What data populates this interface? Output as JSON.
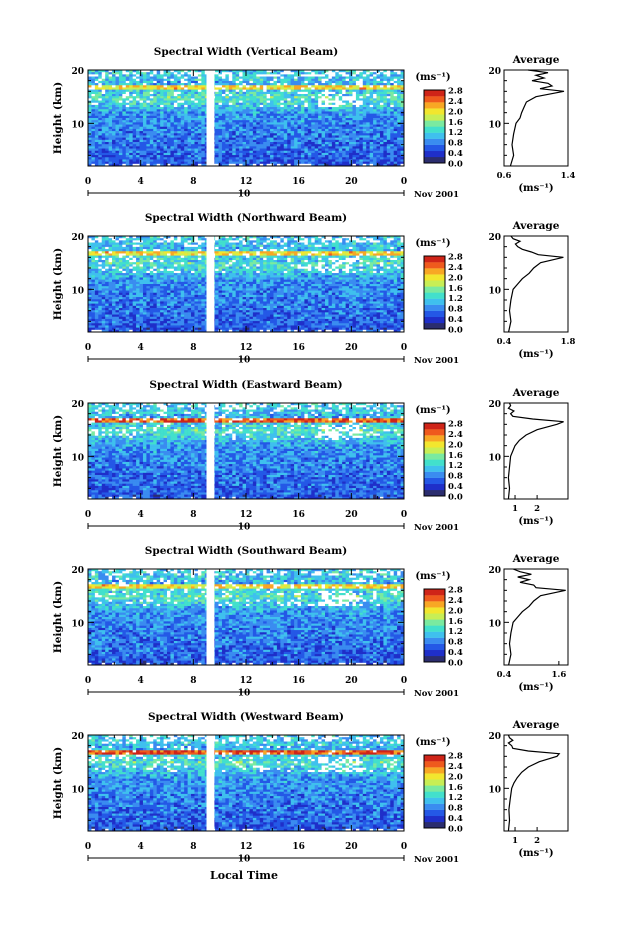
{
  "figure": {
    "x_axis_label": "Local Time",
    "date_label": "Nov 2001",
    "day_label": "10",
    "y_axis_label": "Height (km)",
    "colorbar_unit": "(ms⁻¹)",
    "colorbar_ticks": [
      "2.8",
      "2.4",
      "2.0",
      "1.6",
      "1.2",
      "0.8",
      "0.4",
      "0.0"
    ],
    "colorbar_range": [
      0.0,
      2.8
    ],
    "x_ticks": [
      "0",
      "4",
      "8",
      "12",
      "16",
      "20",
      "0"
    ],
    "x_range_hours": [
      0,
      24
    ],
    "y_ticks": [
      "20",
      "10"
    ],
    "y_range_km": [
      2,
      20
    ],
    "data_gap_hours": [
      9.0,
      9.6
    ],
    "average_title": "Average",
    "average_x_label": "(ms⁻¹)",
    "average_y_ticks": [
      "20",
      "10"
    ]
  },
  "chart_data": [
    {
      "type": "heatmap",
      "title": "Spectral Width (Vertical Beam)",
      "profile": {
        "xlim": [
          0.6,
          1.4
        ],
        "xticks": [
          "0.6",
          "1.4"
        ],
        "heights_km": [
          2,
          4,
          6,
          8,
          10,
          11,
          12,
          13,
          14,
          15,
          16,
          16.5,
          17,
          17.5,
          18,
          18.5,
          19,
          19.5,
          20
        ],
        "values": [
          0.68,
          0.72,
          0.7,
          0.72,
          0.75,
          0.8,
          0.82,
          0.85,
          0.88,
          1.0,
          1.35,
          1.05,
          1.2,
          1.15,
          0.95,
          1.1,
          1.0,
          1.15,
          0.9
        ]
      }
    },
    {
      "type": "heatmap",
      "title": "Spectral Width (Northward Beam)",
      "profile": {
        "xlim": [
          0.4,
          1.8
        ],
        "xticks": [
          "0.4",
          "1.8"
        ],
        "heights_km": [
          2,
          4,
          6,
          8,
          10,
          11,
          12,
          13,
          14,
          15,
          16,
          16.5,
          17,
          17.5,
          18,
          18.5,
          19,
          19.5,
          20
        ],
        "values": [
          0.5,
          0.55,
          0.52,
          0.55,
          0.6,
          0.7,
          0.8,
          0.95,
          1.05,
          1.2,
          1.7,
          1.15,
          1.0,
          0.8,
          0.7,
          0.65,
          0.75,
          0.6,
          0.55
        ]
      }
    },
    {
      "type": "heatmap",
      "title": "Spectral Width (Eastward Beam)",
      "profile": {
        "xlim": [
          0.5,
          3.4
        ],
        "xticks": [
          "1",
          "2"
        ],
        "heights_km": [
          2,
          4,
          6,
          8,
          10,
          11,
          12,
          13,
          14,
          15,
          16,
          16.5,
          17,
          17.5,
          18,
          18.5,
          19,
          19.5,
          20
        ],
        "values": [
          0.7,
          0.75,
          0.7,
          0.75,
          0.8,
          0.9,
          1.0,
          1.2,
          1.5,
          2.0,
          2.9,
          3.2,
          1.8,
          0.9,
          0.8,
          0.95,
          0.7,
          0.8,
          0.75
        ]
      }
    },
    {
      "type": "heatmap",
      "title": "Spectral Width (Southward Beam)",
      "profile": {
        "xlim": [
          0.4,
          1.8
        ],
        "xticks": [
          "0.4",
          "1.6"
        ],
        "heights_km": [
          2,
          4,
          6,
          8,
          10,
          11,
          12,
          13,
          14,
          15,
          16,
          16.5,
          17,
          17.5,
          18,
          18.5,
          19,
          19.5,
          20
        ],
        "values": [
          0.5,
          0.55,
          0.52,
          0.55,
          0.6,
          0.7,
          0.8,
          0.95,
          1.05,
          1.2,
          1.75,
          1.1,
          1.05,
          0.75,
          0.95,
          0.7,
          1.0,
          0.75,
          0.6
        ]
      }
    },
    {
      "type": "heatmap",
      "title": "Spectral Width (Westward Beam)",
      "profile": {
        "xlim": [
          0.5,
          3.4
        ],
        "xticks": [
          "1",
          "2"
        ],
        "heights_km": [
          2,
          4,
          6,
          8,
          10,
          11,
          12,
          13,
          14,
          15,
          16,
          16.5,
          17,
          17.5,
          18,
          18.5,
          19,
          19.5,
          20
        ],
        "values": [
          0.7,
          0.75,
          0.72,
          0.78,
          0.85,
          0.95,
          1.1,
          1.3,
          1.6,
          2.1,
          2.9,
          3.0,
          1.6,
          0.9,
          0.85,
          0.7,
          0.9,
          0.75,
          0.7
        ]
      }
    }
  ],
  "colors": {
    "scale": [
      "#2b2d6e",
      "#1f2fc9",
      "#2458e6",
      "#3a8cf0",
      "#3fc0ee",
      "#42e0cc",
      "#7aeaa0",
      "#c8ee55",
      "#f2e62e",
      "#f8a724",
      "#ef5a1d",
      "#cf2418"
    ]
  }
}
